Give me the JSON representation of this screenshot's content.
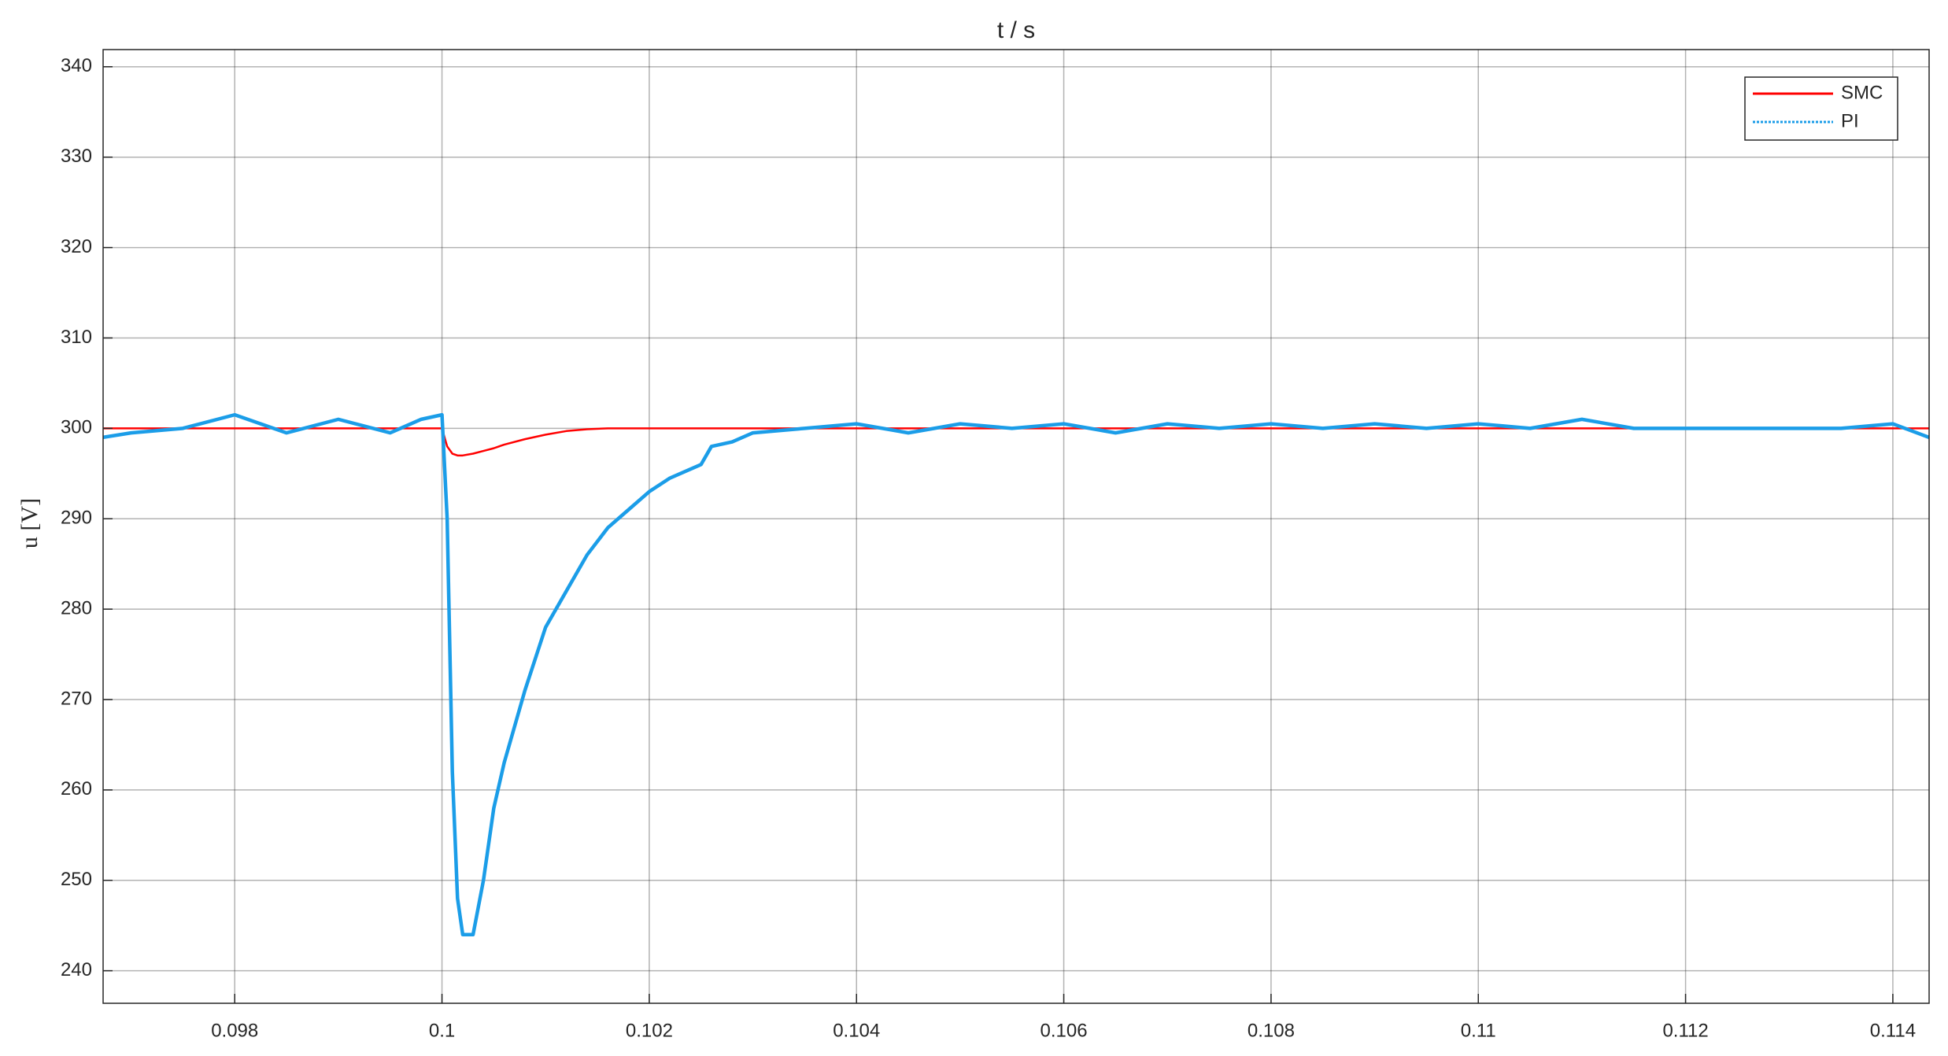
{
  "chart_data": {
    "type": "line",
    "title": "t / s",
    "y_label": "u [V]",
    "x": [
      0.09673,
      0.097,
      0.0975,
      0.098,
      0.0985,
      0.099,
      0.0995,
      0.0998,
      0.1,
      0.10005,
      0.1001,
      0.10015,
      0.1002,
      0.1003,
      0.1004,
      0.1005,
      0.1006,
      0.1008,
      0.101,
      0.1012,
      0.1014,
      0.1016,
      0.1018,
      0.102,
      0.1022,
      0.1024,
      0.1025,
      0.1026,
      0.1028,
      0.103,
      0.1035,
      0.104,
      0.1045,
      0.105,
      0.1055,
      0.106,
      0.1065,
      0.107,
      0.1075,
      0.108,
      0.1085,
      0.109,
      0.1095,
      0.11,
      0.1105,
      0.111,
      0.1115,
      0.112,
      0.1125,
      0.113,
      0.1135,
      0.114,
      0.11435
    ],
    "series": [
      {
        "name": "SMC",
        "color": "#ff0000",
        "linestyle": "solid",
        "values": [
          300,
          300,
          300,
          300,
          300,
          300,
          300,
          300,
          300,
          298,
          297.2,
          297,
          297,
          297.2,
          297.5,
          297.8,
          298.2,
          298.8,
          299.3,
          299.7,
          299.9,
          300,
          300,
          300,
          300,
          300,
          300,
          300,
          300,
          300,
          300,
          300,
          300,
          300,
          300,
          300,
          300,
          300,
          300,
          300,
          300,
          300,
          300,
          300,
          300,
          300,
          300,
          300,
          300,
          300,
          300,
          300,
          300
        ]
      },
      {
        "name": "PI",
        "color": "#1b9de8",
        "linestyle": "dotted",
        "values": [
          299,
          299.5,
          300,
          301.5,
          299.5,
          301,
          299.5,
          301,
          301.5,
          290,
          262,
          248,
          244,
          244,
          250,
          258,
          263,
          271,
          278,
          282,
          286,
          289,
          291,
          293,
          294.5,
          295.5,
          296,
          298,
          298.5,
          299.5,
          300,
          300.5,
          299.5,
          300.5,
          300,
          300.5,
          299.5,
          300.5,
          300,
          300.5,
          300,
          300.5,
          300,
          300.5,
          300,
          301,
          300,
          300,
          300,
          300,
          300,
          300.5,
          299
        ]
      }
    ],
    "xlim": [
      0.09673,
      0.11435
    ],
    "xticks": [
      0.098,
      0.1,
      0.102,
      0.104,
      0.106,
      0.108,
      0.11,
      0.112,
      0.114
    ],
    "ylim": [
      236.4,
      341.9
    ],
    "yticks": [
      240,
      250,
      260,
      270,
      280,
      290,
      300,
      310,
      320,
      330,
      340
    ],
    "grid": true,
    "legend": "top-right"
  }
}
